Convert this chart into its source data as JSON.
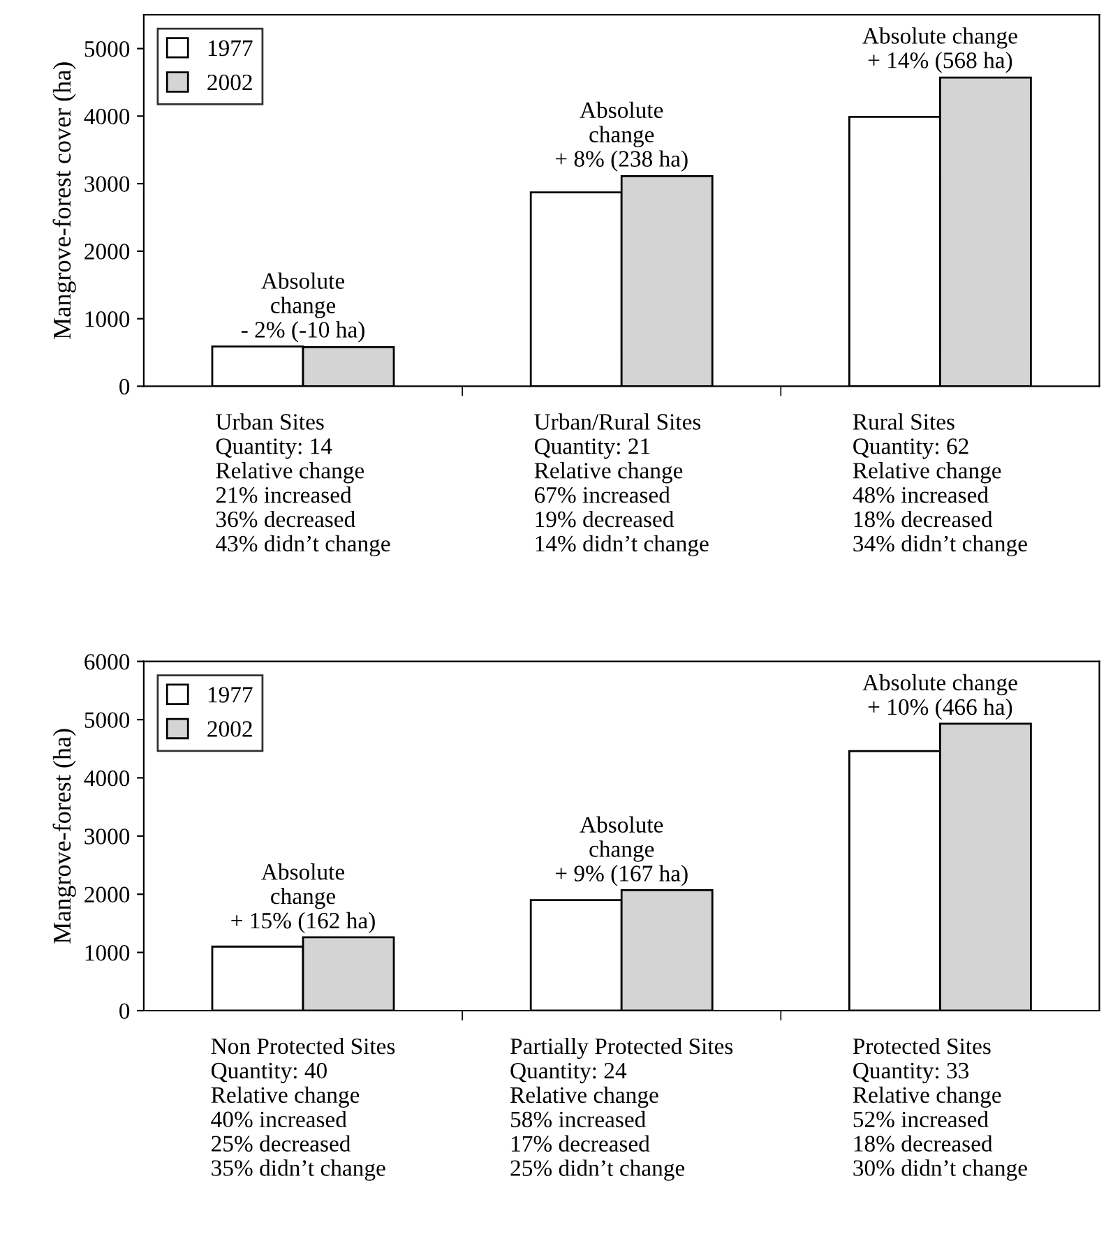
{
  "chart_data": [
    {
      "type": "bar",
      "ylabel": "Mangrove-forest cover (ha)",
      "categories": [
        "Urban Sites\nQuantity: 14\nRelative change\n21% increased\n36% decreased\n43% didn’t change",
        "Urban/Rural Sites\nQuantity: 21\nRelative change\n67% increased\n19% decreased\n14% didn’t change",
        "Rural Sites\nQuantity: 62\nRelative change\n48% increased\n18% decreased\n34% didn’t change"
      ],
      "series": [
        {
          "name": "1977",
          "color": "#ffffff",
          "values": [
            590,
            2870,
            3990
          ]
        },
        {
          "name": "2002",
          "color": "#d4d4d4",
          "values": [
            580,
            3110,
            4570
          ]
        }
      ],
      "annotations": [
        {
          "text": "Absolute\nchange\n- 2% (-10 ha)",
          "x": "Urban Sites\nQuantity: 14\nRelative change\n21% increased\n36% decreased\n43% didn’t change",
          "y": 650
        },
        {
          "text": "Absolute\nchange\n+ 8% (238 ha)",
          "x": "Urban/Rural Sites\nQuantity: 21\nRelative change\n67% increased\n19% decreased\n14% didn’t change",
          "y": 3180
        },
        {
          "text": "Absolute change\n+ 14% (568 ha)",
          "x": "Rural Sites\nQuantity: 62\nRelative change\n48% increased\n18% decreased\n34% didn’t change",
          "y": 4640
        }
      ],
      "ylim": [
        0,
        5500
      ],
      "yticks": [
        0,
        1000,
        2000,
        3000,
        4000,
        5000
      ],
      "grid": false,
      "legend": "top left"
    },
    {
      "type": "bar",
      "ylabel": "Mangrove-forest (ha)",
      "categories": [
        "Non Protected Sites\nQuantity: 40\nRelative change\n40% increased\n25% decreased\n35% didn’t change",
        "Partially Protected Sites\nQuantity: 24\nRelative change\n58% increased\n17% decreased\n25% didn’t change",
        "Protected Sites\nQuantity: 33\nRelative change\n52% increased\n18% decreased\n30% didn’t change"
      ],
      "series": [
        {
          "name": "1977",
          "color": "#ffffff",
          "values": [
            1100,
            1900,
            4460
          ]
        },
        {
          "name": "2002",
          "color": "#d4d4d4",
          "values": [
            1260,
            2070,
            4930
          ]
        }
      ],
      "annotations": [
        {
          "text": "Absolute\nchange\n+ 15% (162 ha)",
          "x": "Non Protected Sites\nQuantity: 40\nRelative change\n40% increased\n25% decreased\n35% didn’t change",
          "y": 1330
        },
        {
          "text": "Absolute\nchange\n+ 9% (167 ha)",
          "x": "Partially Protected Sites\nQuantity: 24\nRelative change\n58% increased\n17% decreased\n25% didn’t change",
          "y": 2140
        },
        {
          "text": "Absolute change\n+ 10% (466 ha)",
          "x": "Protected Sites\nQuantity: 33\nRelative change\n52% increased\n18% decreased\n30% didn’t change",
          "y": 5000
        }
      ],
      "ylim": [
        0,
        6000
      ],
      "yticks": [
        0,
        1000,
        2000,
        3000,
        4000,
        5000,
        6000
      ],
      "grid": false,
      "legend": "top left"
    }
  ]
}
